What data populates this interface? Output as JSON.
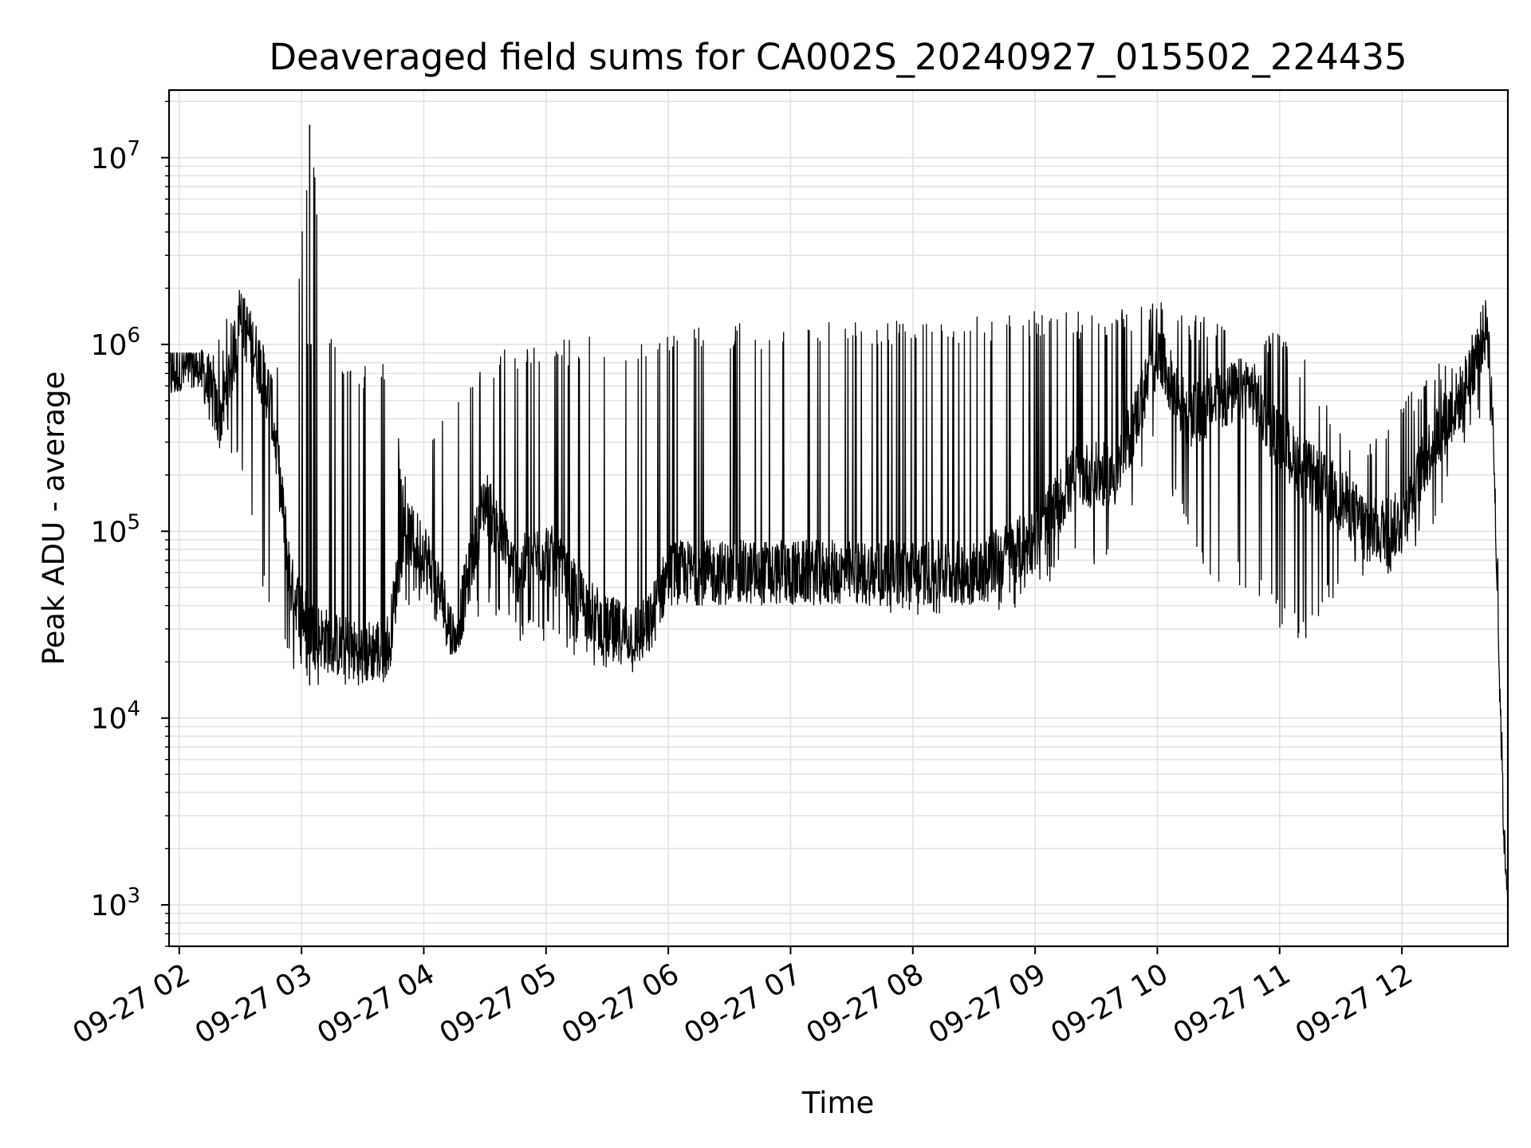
{
  "chart_data": {
    "type": "line",
    "title": "Deaveraged field sums for CA002S_20240927_015502_224435",
    "xlabel": "Time",
    "ylabel": "Peak ADU - average",
    "yscale": "log",
    "ylim": [
      600,
      23000000
    ],
    "xlim": [
      "2024-09-27T01:55:00",
      "2024-09-27T12:52:00"
    ],
    "grid": true,
    "legend": "none",
    "line_color": "#000000",
    "x_ticks": [
      "2024-09-27T02:00",
      "2024-09-27T03:00",
      "2024-09-27T04:00",
      "2024-09-27T05:00",
      "2024-09-27T06:00",
      "2024-09-27T07:00",
      "2024-09-27T08:00",
      "2024-09-27T09:00",
      "2024-09-27T10:00",
      "2024-09-27T11:00",
      "2024-09-27T12:00"
    ],
    "x_tick_labels": [
      "09-27 02",
      "09-27 03",
      "09-27 04",
      "09-27 05",
      "09-27 06",
      "09-27 07",
      "09-27 08",
      "09-27 09",
      "09-27 10",
      "09-27 11",
      "09-27 12"
    ],
    "y_ticks": [
      1000,
      10000,
      100000,
      1000000,
      10000000
    ],
    "y_tick_labels": [
      {
        "base": "10",
        "exp": "3"
      },
      {
        "base": "10",
        "exp": "4"
      },
      {
        "base": "10",
        "exp": "5"
      },
      {
        "base": "10",
        "exp": "6"
      },
      {
        "base": "10",
        "exp": "7"
      }
    ],
    "series": [
      {
        "x": [
          "2024-09-27T01:55",
          "2024-09-27T02:10",
          "2024-09-27T02:20",
          "2024-09-27T02:30",
          "2024-09-27T02:35",
          "2024-09-27T02:45",
          "2024-09-27T02:55",
          "2024-09-27T03:04",
          "2024-09-27T03:15",
          "2024-09-27T03:30",
          "2024-09-27T03:43",
          "2024-09-27T03:50",
          "2024-09-27T04:00",
          "2024-09-27T04:10",
          "2024-09-27T04:15",
          "2024-09-27T04:30",
          "2024-09-27T04:45",
          "2024-09-27T05:00",
          "2024-09-27T05:15",
          "2024-09-27T05:30",
          "2024-09-27T05:45",
          "2024-09-27T05:50",
          "2024-09-27T06:00",
          "2024-09-27T06:30",
          "2024-09-27T07:00",
          "2024-09-27T07:30",
          "2024-09-27T08:00",
          "2024-09-27T08:30",
          "2024-09-27T09:00",
          "2024-09-27T09:20",
          "2024-09-27T09:40",
          "2024-09-27T10:00",
          "2024-09-27T10:15",
          "2024-09-27T10:30",
          "2024-09-27T10:45",
          "2024-09-27T11:00",
          "2024-09-27T11:15",
          "2024-09-27T11:30",
          "2024-09-27T11:45",
          "2024-09-27T12:00",
          "2024-09-27T12:15",
          "2024-09-27T12:30",
          "2024-09-27T12:42",
          "2024-09-27T12:45",
          "2024-09-27T12:48",
          "2024-09-27T12:50",
          "2024-09-27T12:52"
        ],
        "values": [
          700000,
          780000,
          400000,
          1300000,
          1100000,
          500000,
          50000,
          30000,
          25000,
          22000,
          25000,
          100000,
          80000,
          40000,
          25000,
          150000,
          60000,
          80000,
          45000,
          30000,
          28000,
          30000,
          60000,
          60000,
          60000,
          60000,
          60000,
          60000,
          90000,
          200000,
          200000,
          900000,
          400000,
          500000,
          600000,
          300000,
          200000,
          150000,
          100000,
          110000,
          300000,
          550000,
          1300000,
          300000,
          15000,
          2500,
          1100
        ],
        "peak_envelope": [
          900000,
          900000,
          1200000,
          2100000,
          1500000,
          900000,
          700000,
          15000000,
          1000000,
          800000,
          800000,
          200000,
          300000,
          400000,
          600000,
          900000,
          1000000,
          1000000,
          1100000,
          1100000,
          1100000,
          1200000,
          1200000,
          1300000,
          1300000,
          1350000,
          1350000,
          1400000,
          1500000,
          1500000,
          1600000,
          1700000,
          1500000,
          1400000,
          1300000,
          1200000,
          800000,
          400000,
          300000,
          500000,
          800000,
          1000000,
          1800000,
          500000,
          30000,
          3000,
          1100
        ],
        "trough_envelope": [
          550000,
          600000,
          250000,
          250000,
          100000,
          30000,
          18000,
          15000,
          15000,
          15000,
          15000,
          40000,
          40000,
          22000,
          22000,
          40000,
          25000,
          25000,
          20000,
          18000,
          17000,
          20000,
          40000,
          40000,
          40000,
          40000,
          35000,
          35000,
          40000,
          60000,
          60000,
          300000,
          80000,
          50000,
          50000,
          30000,
          25000,
          50000,
          55000,
          60000,
          100000,
          250000,
          500000,
          250000,
          12000,
          2000,
          1000
        ]
      }
    ]
  }
}
